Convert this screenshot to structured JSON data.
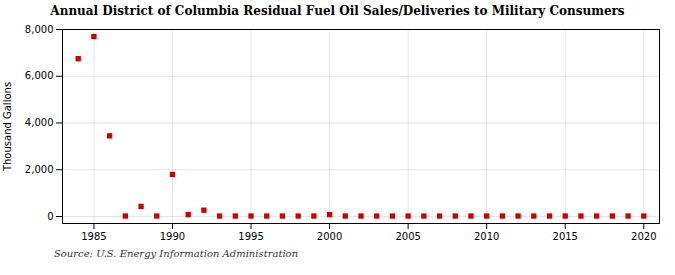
{
  "chart_data": {
    "type": "scatter",
    "title": "Annual District of Columbia Residual Fuel Oil Sales/Deliveries to Military Consumers",
    "ylabel": "Thousand Gallons",
    "caption": "Source: U.S. Energy Information Administration",
    "x": [
      1984,
      1985,
      1986,
      1987,
      1988,
      1989,
      1990,
      1991,
      1992,
      1993,
      1994,
      1995,
      1996,
      1997,
      1998,
      1999,
      2000,
      2001,
      2002,
      2003,
      2004,
      2005,
      2006,
      2007,
      2008,
      2009,
      2010,
      2011,
      2012,
      2013,
      2014,
      2015,
      2016,
      2017,
      2018,
      2019,
      2020
    ],
    "values": [
      6750,
      7700,
      3450,
      20,
      430,
      20,
      1800,
      80,
      270,
      20,
      20,
      20,
      20,
      20,
      20,
      20,
      80,
      20,
      20,
      20,
      20,
      20,
      20,
      20,
      20,
      20,
      20,
      20,
      20,
      20,
      20,
      20,
      20,
      20,
      20,
      20,
      20
    ],
    "color": "#cc0000",
    "marker": "square",
    "xlim": [
      1983,
      2021
    ],
    "ylim": [
      -300,
      8000
    ],
    "xticks": [
      1985,
      1990,
      1995,
      2000,
      2005,
      2010,
      2015,
      2020
    ],
    "yticks": [
      0,
      {
        "value": 2000,
        "label": "2,000"
      },
      {
        "value": 4000,
        "label": "4,000"
      },
      {
        "value": 6000,
        "label": "6,000"
      },
      {
        "value": 8000,
        "label": "8,000"
      }
    ],
    "grid": true
  }
}
